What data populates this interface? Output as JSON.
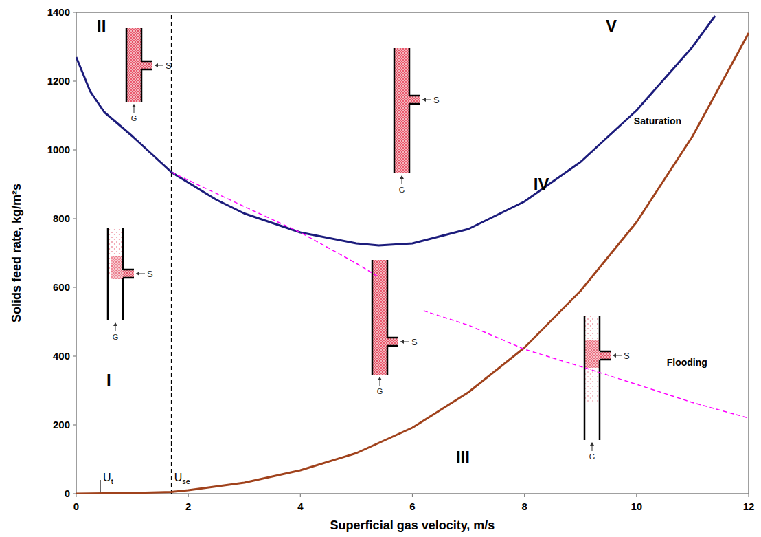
{
  "chart_data": {
    "type": "line",
    "x_label": "Superficial gas velocity, m/s",
    "y_label": "Solids feed rate, kg/m²s",
    "xlim": [
      0,
      12
    ],
    "ylim": [
      0,
      1400
    ],
    "xticks": [
      0,
      2,
      4,
      6,
      8,
      10,
      12
    ],
    "yticks": [
      0,
      200,
      400,
      600,
      800,
      1000,
      1200,
      1400
    ],
    "grid": false,
    "series": [
      {
        "color": "#1c1c7c",
        "line_style": "solid",
        "x": [
          0,
          0.25,
          0.5,
          1,
          1.7,
          2.5,
          3,
          4,
          5,
          5.4,
          6,
          7,
          8,
          9,
          10,
          11,
          11.4
        ],
        "values": [
          1270,
          1170,
          1110,
          1040,
          935,
          855,
          815,
          760,
          728,
          722,
          728,
          770,
          850,
          965,
          1115,
          1300,
          1390
        ]
      },
      {
        "name": "Saturation",
        "color": "#a0421c",
        "line_style": "solid",
        "x": [
          0,
          1,
          1.7,
          2,
          3,
          4,
          5,
          6,
          7,
          8,
          9,
          10,
          11,
          12
        ],
        "values": [
          0,
          2,
          5,
          10,
          32,
          68,
          118,
          192,
          295,
          425,
          590,
          790,
          1040,
          1340
        ],
        "label_at": [
          10.8,
          1075
        ]
      },
      {
        "name": "Flooding",
        "color": "#ff00ff",
        "line_style": "dashed",
        "x": [
          1.7,
          3,
          4,
          5,
          5.4,
          5.8,
          6.2,
          7,
          8,
          9,
          10,
          11,
          12
        ],
        "values": [
          935,
          835,
          760,
          670,
          630,
          null,
          532,
          490,
          420,
          370,
          318,
          265,
          220
        ],
        "label_at": [
          10.9,
          372
        ]
      }
    ],
    "regions": [
      {
        "label": "I",
        "x": 0.58,
        "y": 326
      },
      {
        "label": "II",
        "x": 0.45,
        "y": 1356
      },
      {
        "label": "III",
        "x": 6.9,
        "y": 102
      },
      {
        "label": "IV",
        "x": 8.3,
        "y": 896
      },
      {
        "label": "V",
        "x": 9.55,
        "y": 1356
      }
    ],
    "velocity_markers": [
      {
        "x": 0.43,
        "y": [
          0,
          40
        ],
        "text": "U",
        "subscript": "t",
        "line_style": "solid",
        "label_y": 36
      },
      {
        "x": 1.7,
        "y": [
          0,
          1400
        ],
        "text": "U",
        "subscript": "se",
        "line_style": "dashed",
        "label_y": 36
      }
    ],
    "schematic_labels": {
      "solids": "S",
      "gas": "G"
    }
  }
}
